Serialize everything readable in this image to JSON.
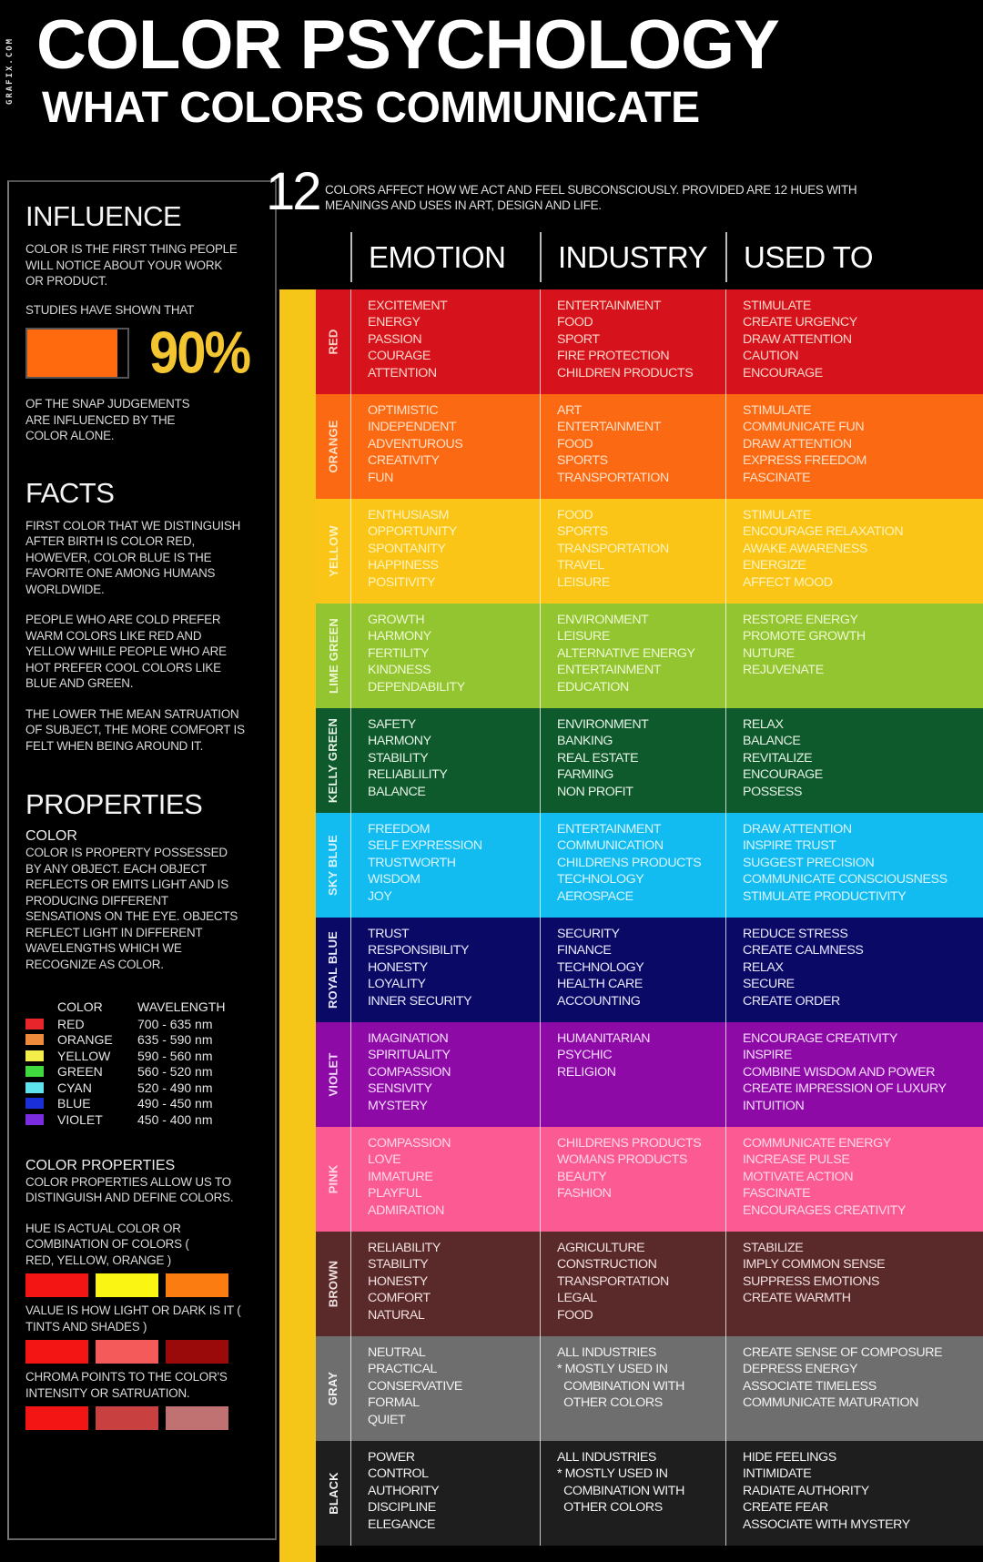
{
  "watermark": "GRAFIX.COM",
  "header": {
    "title": "COLOR PSYCHOLOGY",
    "subtitle": "WHAT COLORS COMMUNICATE"
  },
  "left_panel": {
    "influence": {
      "heading": "INFLUENCE",
      "text1": "COLOR IS THE FIRST THING PEOPLE WILL NOTICE ABOUT YOUR WORK OR PRODUCT.",
      "text2": "STUDIES HAVE SHOWN THAT",
      "percent": "90%",
      "bar_fill_color": "#ff6a0f",
      "percent_color": "#f2c531",
      "text3": "OF THE SNAP JUDGEMENTS ARE INFLUENCED BY THE COLOR  ALONE."
    },
    "facts": {
      "heading": "FACTS",
      "items": [
        "FIRST COLOR THAT WE DISTINGUISH AFTER BIRTH IS COLOR RED, HOWEVER, COLOR BLUE IS THE FAVORITE ONE AMONG HUMANS WORLDWIDE.",
        "PEOPLE WHO ARE COLD PREFER WARM COLORS LIKE RED AND YELLOW WHILE PEOPLE WHO ARE HOT PREFER COOL COLORS LIKE BLUE AND GREEN.",
        "THE LOWER THE MEAN SATRUATION OF SUBJECT, THE MORE COMFORT IS FELT WHEN BEING AROUND IT."
      ]
    },
    "properties": {
      "heading": "PROPERTIES",
      "color_sub": "COLOR",
      "color_text": "COLOR IS PROPERTY POSSESSED BY ANY OBJECT. EACH OBJECT REFLECTS OR EMITS LIGHT AND IS PRODUCING DIFFERENT SENSATIONS ON THE EYE. OBJECTS REFLECT LIGHT IN DIFFERENT WAVELENGTHS WHICH WE RECOGNIZE AS COLOR.",
      "wavelength_table": {
        "col_color": "COLOR",
        "col_wavelength": "WAVELENGTH",
        "rows": [
          {
            "swatch": "#e8252b",
            "name": "RED",
            "range": "700 - 635 nm"
          },
          {
            "swatch": "#ee8a3c",
            "name": "ORANGE",
            "range": "635 - 590 nm"
          },
          {
            "swatch": "#f4ee4a",
            "name": "YELLOW",
            "range": "590 - 560 nm"
          },
          {
            "swatch": "#3fd83f",
            "name": "GREEN",
            "range": "560 - 520 nm"
          },
          {
            "swatch": "#5ee3ec",
            "name": "CYAN",
            "range": "520 - 490 nm"
          },
          {
            "swatch": "#1a2fd8",
            "name": "BLUE",
            "range": "490 - 450 nm"
          },
          {
            "swatch": "#7b2be0",
            "name": "VIOLET",
            "range": "450 - 400 nm"
          }
        ]
      },
      "color_properties_sub": "COLOR PROPERTIES",
      "color_properties_text": "COLOR PROPERTIES ALLOW US TO DISTINGUISH AND DEFINE COLORS.",
      "hue_text": "HUE IS ACTUAL COLOR OR COMBINATION OF COLORS ( RED, YELLOW, ORANGE )",
      "hue_swatches": [
        "#f31414",
        "#fbf514",
        "#fb7d12"
      ],
      "value_text": "VALUE IS HOW LIGHT OR DARK IS IT ( TINTS AND SHADES )",
      "value_swatches": [
        "#f31414",
        "#f45a5a",
        "#9a0a0a"
      ],
      "chroma_text": "CHROMA POINTS TO THE COLOR'S INTENSITY OR SATRUATION.",
      "chroma_swatches": [
        "#f31414",
        "#c84040",
        "#c07272"
      ]
    }
  },
  "intro": {
    "number": "12",
    "text": "COLORS AFFECT HOW WE ACT AND FEEL SUBCONSCIOUSLY.  PROVIDED ARE 12 HUES WITH MEANINGS AND USES IN ART, DESIGN AND LIFE."
  },
  "columns": {
    "emotion": "EMOTION",
    "industry": "INDUSTRY",
    "used_to": "USED TO"
  },
  "accent_bar_color": "#f5c518",
  "colors": [
    {
      "name": "RED",
      "bg": "#d6121c",
      "fg": "#ffd6c8",
      "emotion": [
        "EXCITEMENT",
        "ENERGY",
        "PASSION",
        "COURAGE",
        "ATTENTION"
      ],
      "industry": [
        "ENTERTAINMENT",
        "FOOD",
        "SPORT",
        "FIRE PROTECTION",
        "CHILDREN PRODUCTS"
      ],
      "used_to": [
        "STIMULATE",
        "CREATE URGENCY",
        "DRAW ATTENTION",
        "CAUTION",
        "ENCOURAGE"
      ]
    },
    {
      "name": "ORANGE",
      "bg": "#fb6a12",
      "fg": "#ffe0c8",
      "emotion": [
        "OPTIMISTIC",
        "INDEPENDENT",
        "ADVENTUROUS",
        "CREATIVITY",
        "FUN"
      ],
      "industry": [
        "ART",
        "ENTERTAINMENT",
        "FOOD",
        "SPORTS",
        "TRANSPORTATION"
      ],
      "used_to": [
        "STIMULATE",
        "COMMUNICATE FUN",
        "DRAW ATTENTION",
        "EXPRESS FREEDOM",
        "FASCINATE"
      ]
    },
    {
      "name": "YELLOW",
      "bg": "#fac516",
      "fg": "#fff3c0",
      "emotion": [
        "ENTHUSIASM",
        "OPPORTUNITY",
        "SPONTANITY",
        "HAPPINESS",
        "POSITIVITY"
      ],
      "industry": [
        "FOOD",
        "SPORTS",
        "TRANSPORTATION",
        "TRAVEL",
        "LEISURE"
      ],
      "used_to": [
        "STIMULATE",
        "ENCOURAGE RELAXATION",
        "AWAKE AWARENESS",
        "ENERGIZE",
        "AFFECT MOOD"
      ]
    },
    {
      "name": "LIME GREEN",
      "bg": "#92c530",
      "fg": "#eef8d2",
      "emotion": [
        "GROWTH",
        "HARMONY",
        "FERTILITY",
        "KINDNESS",
        "DEPENDABILITY"
      ],
      "industry": [
        "ENVIRONMENT",
        "LEISURE",
        "ALTERNATIVE ENERGY",
        "ENTERTAINMENT",
        "EDUCATION"
      ],
      "used_to": [
        "RESTORE ENERGY",
        "PROMOTE GROWTH",
        "NUTURE",
        "REJUVENATE"
      ]
    },
    {
      "name": "KELLY GREEN",
      "bg": "#0f5a2c",
      "fg": "#e6f2e6",
      "emotion": [
        "SAFETY",
        "HARMONY",
        "STABILITY",
        "RELIABLILITY",
        "BALANCE"
      ],
      "industry": [
        "ENVIRONMENT",
        "BANKING",
        "REAL ESTATE",
        "FARMING",
        "NON PROFIT"
      ],
      "used_to": [
        "RELAX",
        "BALANCE",
        "REVITALIZE",
        "ENCOURAGE",
        "POSSESS"
      ]
    },
    {
      "name": "SKY BLUE",
      "bg": "#12bcf0",
      "fg": "#d8f4ff",
      "emotion": [
        "FREEDOM",
        "SELF EXPRESSION",
        "TRUSTWORTH",
        "WISDOM",
        "JOY"
      ],
      "industry": [
        "ENTERTAINMENT",
        "COMMUNICATION",
        "CHILDRENS PRODUCTS",
        "TECHNOLOGY",
        "AEROSPACE"
      ],
      "used_to": [
        "DRAW ATTENTION",
        "INSPIRE TRUST",
        "SUGGEST PRECISION",
        "COMMUNICATE CONSCIOUSNESS",
        "STIMULATE PRODUCTIVITY"
      ]
    },
    {
      "name": "ROYAL BLUE",
      "bg": "#0a0a66",
      "fg": "#e8e8ff",
      "emotion": [
        "TRUST",
        "RESPONSIBILITY",
        "HONESTY",
        "LOYALITY",
        "INNER SECURITY"
      ],
      "industry": [
        "SECURITY",
        "FINANCE",
        "TECHNOLOGY",
        "HEALTH CARE",
        "ACCOUNTING"
      ],
      "used_to": [
        "REDUCE STRESS",
        "CREATE CALMNESS",
        "RELAX",
        "SECURE",
        "CREATE ORDER"
      ]
    },
    {
      "name": "VIOLET",
      "bg": "#8e0aa6",
      "fg": "#f6dcff",
      "emotion": [
        "IMAGINATION",
        "SPIRITUALITY",
        "COMPASSION",
        "SENSIVITY",
        "MYSTERY"
      ],
      "industry": [
        "HUMANITARIAN",
        "PSYCHIC",
        "RELIGION"
      ],
      "used_to": [
        "ENCOURAGE CREATIVITY",
        "INSPIRE",
        "COMBINE WISDOM AND POWER",
        "CREATE IMPRESSION OF LUXURY",
        "INTUITION"
      ]
    },
    {
      "name": "PINK",
      "bg": "#fb5a92",
      "fg": "#ffd9e6",
      "emotion": [
        "COMPASSION",
        "LOVE",
        "IMMATURE",
        "PLAYFUL",
        "ADMIRATION"
      ],
      "industry": [
        "CHILDRENS PRODUCTS",
        "WOMANS PRODUCTS",
        "BEAUTY",
        "FASHION"
      ],
      "used_to": [
        "COMMUNICATE ENERGY",
        "INCREASE PULSE",
        "MOTIVATE ACTION",
        "FASCINATE",
        "ENCOURAGES CREATIVITY"
      ]
    },
    {
      "name": "BROWN",
      "bg": "#5a2a2a",
      "fg": "#f0e0e0",
      "emotion": [
        "RELIABILITY",
        "STABILITY",
        "HONESTY",
        "COMFORT",
        "NATURAL"
      ],
      "industry": [
        "AGRICULTURE",
        "CONSTRUCTION",
        "TRANSPORTATION",
        "LEGAL",
        "FOOD"
      ],
      "used_to": [
        "STABILIZE",
        "IMPLY COMMON SENSE",
        "SUPPRESS EMOTIONS",
        "CREATE WARMTH"
      ]
    },
    {
      "name": "GRAY",
      "bg": "#6e6e6e",
      "fg": "#f2f2f2",
      "emotion": [
        "NEUTRAL",
        "PRACTICAL",
        "CONSERVATIVE",
        "FORMAL",
        "QUIET"
      ],
      "industry": [
        "ALL INDUSTRIES",
        "* MOSTLY USED IN",
        "  COMBINATION WITH",
        "  OTHER COLORS"
      ],
      "used_to": [
        "CREATE SENSE OF COMPOSURE",
        "DEPRESS ENERGY",
        "ASSOCIATE TIMELESS",
        "COMMUNICATE MATURATION"
      ]
    },
    {
      "name": "BLACK",
      "bg": "#1e1e1e",
      "fg": "#f2f2f2",
      "emotion": [
        "POWER",
        "CONTROL",
        "AUTHORITY",
        "DISCIPLINE",
        "ELEGANCE"
      ],
      "industry": [
        "ALL INDUSTRIES",
        "* MOSTLY USED IN",
        "  COMBINATION WITH",
        "  OTHER COLORS"
      ],
      "used_to": [
        "HIDE FEELINGS",
        "INTIMIDATE",
        "RADIATE AUTHORITY",
        "CREATE FEAR",
        "ASSOCIATE WITH MYSTERY"
      ]
    }
  ]
}
